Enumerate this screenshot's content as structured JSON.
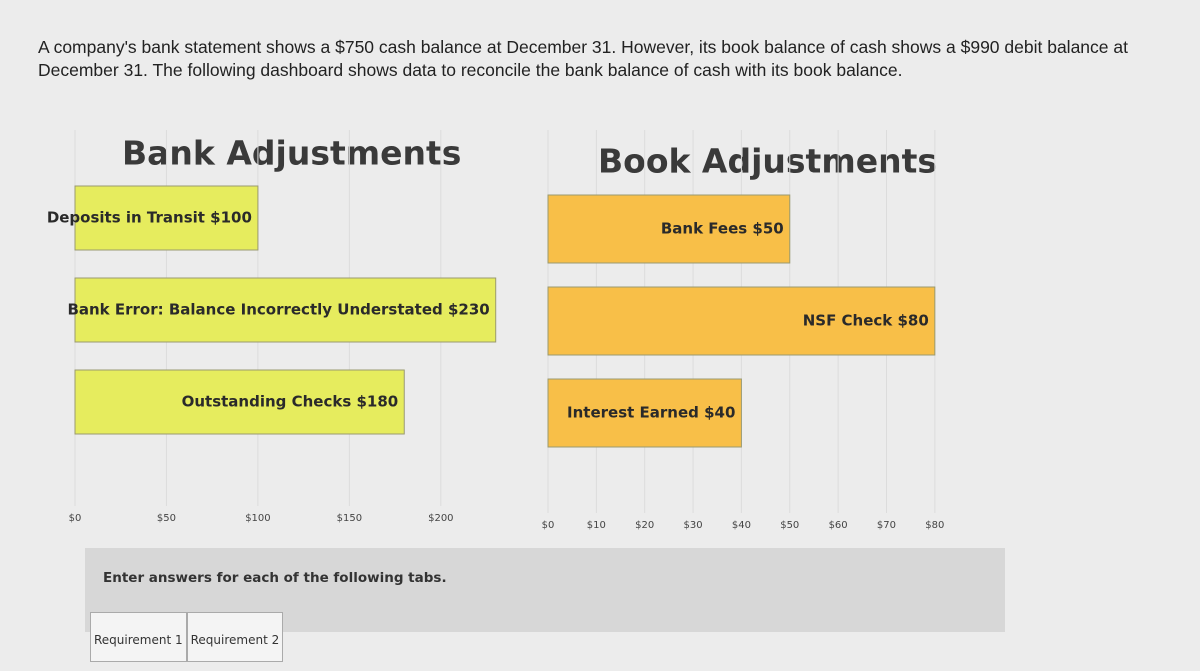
{
  "intro": "A company's bank statement shows a $750 cash balance at December 31. However, its book balance of cash shows a $990 debit balance at December 31. The following dashboard shows data to reconcile the bank balance of cash with its book balance.",
  "chart_data": [
    {
      "type": "bar",
      "title": "Bank Adjustments",
      "orientation": "horizontal",
      "values": [
        100,
        230,
        180
      ],
      "value_labels": [
        "Deposits in Transit $100",
        "Bank Error: Balance Incorrectly Understated $230",
        "Outstanding Checks $180"
      ],
      "color": "#e6ec5e",
      "grid": true,
      "xlim": [
        0,
        240
      ],
      "xticks": [
        {
          "value": 0,
          "label": "$0"
        },
        {
          "value": 50,
          "label": "$50"
        },
        {
          "value": 100,
          "label": "$100"
        },
        {
          "value": 150,
          "label": "$150"
        },
        {
          "value": 200,
          "label": "$200"
        }
      ]
    },
    {
      "type": "bar",
      "title": "Book Adjustments",
      "orientation": "horizontal",
      "values": [
        50,
        80,
        40
      ],
      "value_labels": [
        "Bank Fees $50",
        "NSF Check $80",
        "Interest Earned $40"
      ],
      "color": "#f8bf48",
      "grid": true,
      "xlim": [
        0,
        85
      ],
      "xticks": [
        {
          "value": 0,
          "label": "$0"
        },
        {
          "value": 10,
          "label": "$10"
        },
        {
          "value": 20,
          "label": "$20"
        },
        {
          "value": 30,
          "label": "$30"
        },
        {
          "value": 40,
          "label": "$40"
        },
        {
          "value": 50,
          "label": "$50"
        },
        {
          "value": 60,
          "label": "$60"
        },
        {
          "value": 70,
          "label": "$70"
        },
        {
          "value": 80,
          "label": "$80"
        }
      ]
    }
  ],
  "instructions": "Enter answers for each of the following tabs.",
  "tabs": [
    "Requirement 1",
    "Requirement 2"
  ]
}
